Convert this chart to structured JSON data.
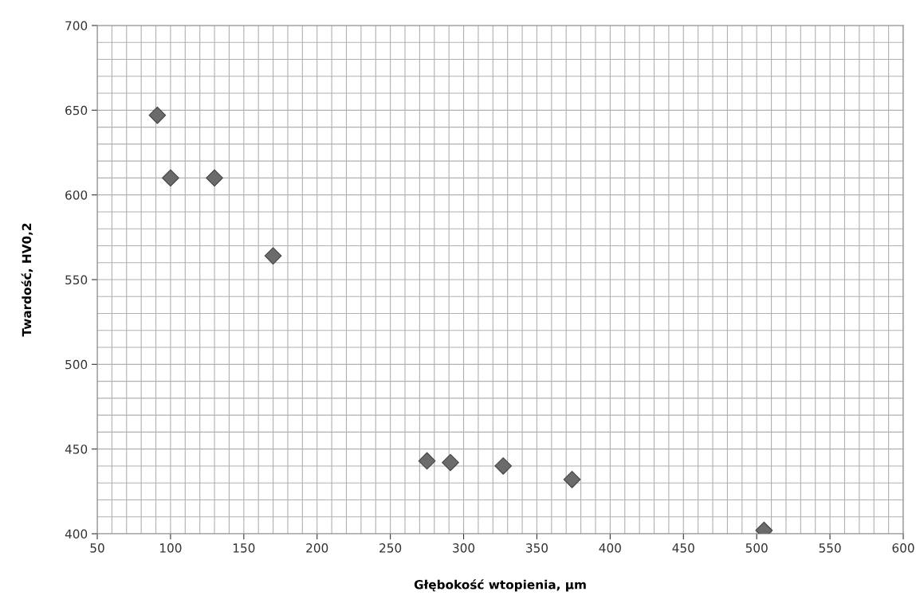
{
  "chart_data": {
    "type": "scatter",
    "xlabel": "Głębokość wtopienia, µm",
    "ylabel": "Twardość, HV0,2",
    "x": [
      91,
      100,
      130,
      170,
      275,
      291,
      327,
      374,
      505
    ],
    "values": [
      647,
      610,
      610,
      564,
      443,
      442,
      440,
      432,
      402
    ],
    "color": "#6b6b6b",
    "marker": "diamond",
    "xlim": [
      50,
      600
    ],
    "ylim": [
      400,
      700
    ],
    "xticks": [
      50,
      {
        "value": 60,
        "label": null
      },
      {
        "value": 70,
        "label": null
      },
      {
        "value": 80,
        "label": null
      },
      {
        "value": 90,
        "label": null
      },
      100,
      {
        "value": 110,
        "label": null
      },
      {
        "value": 120,
        "label": null
      },
      {
        "value": 130,
        "label": null
      },
      {
        "value": 140,
        "label": null
      },
      150,
      {
        "value": 160,
        "label": null
      },
      {
        "value": 170,
        "label": null
      },
      {
        "value": 180,
        "label": null
      },
      {
        "value": 190,
        "label": null
      },
      200,
      {
        "value": 210,
        "label": null
      },
      {
        "value": 220,
        "label": null
      },
      {
        "value": 230,
        "label": null
      },
      {
        "value": 240,
        "label": null
      },
      250,
      {
        "value": 260,
        "label": null
      },
      {
        "value": 270,
        "label": null
      },
      {
        "value": 280,
        "label": null
      },
      {
        "value": 290,
        "label": null
      },
      300,
      {
        "value": 310,
        "label": null
      },
      {
        "value": 320,
        "label": null
      },
      {
        "value": 330,
        "label": null
      },
      {
        "value": 340,
        "label": null
      },
      350,
      {
        "value": 360,
        "label": null
      },
      {
        "value": 370,
        "label": null
      },
      {
        "value": 380,
        "label": null
      },
      {
        "value": 390,
        "label": null
      },
      400,
      {
        "value": 410,
        "label": null
      },
      {
        "value": 420,
        "label": null
      },
      {
        "value": 430,
        "label": null
      },
      {
        "value": 440,
        "label": null
      },
      450,
      {
        "value": 460,
        "label": null
      },
      {
        "value": 470,
        "label": null
      },
      {
        "value": 480,
        "label": null
      },
      {
        "value": 490,
        "label": null
      },
      500,
      {
        "value": 510,
        "label": null
      },
      {
        "value": 520,
        "label": null
      },
      {
        "value": 530,
        "label": null
      },
      {
        "value": 540,
        "label": null
      },
      550,
      {
        "value": 560,
        "label": null
      },
      {
        "value": 570,
        "label": null
      },
      {
        "value": 580,
        "label": null
      },
      {
        "value": 590,
        "label": null
      },
      600
    ],
    "yticks": [
      400,
      {
        "value": 410,
        "label": null
      },
      {
        "value": 420,
        "label": null
      },
      {
        "value": 430,
        "label": null
      },
      {
        "value": 440,
        "label": null
      },
      450,
      {
        "value": 460,
        "label": null
      },
      {
        "value": 470,
        "label": null
      },
      {
        "value": 480,
        "label": null
      },
      {
        "value": 490,
        "label": null
      },
      500,
      {
        "value": 510,
        "label": null
      },
      {
        "value": 520,
        "label": null
      },
      {
        "value": 530,
        "label": null
      },
      {
        "value": 540,
        "label": null
      },
      550,
      {
        "value": 560,
        "label": null
      },
      {
        "value": 570,
        "label": null
      },
      {
        "value": 580,
        "label": null
      },
      {
        "value": 590,
        "label": null
      },
      600,
      {
        "value": 610,
        "label": null
      },
      {
        "value": 620,
        "label": null
      },
      {
        "value": 630,
        "label": null
      },
      {
        "value": 640,
        "label": null
      },
      650,
      {
        "value": 660,
        "label": null
      },
      {
        "value": 670,
        "label": null
      },
      {
        "value": 680,
        "label": null
      },
      {
        "value": 690,
        "label": null
      },
      700
    ],
    "grid": true
  }
}
